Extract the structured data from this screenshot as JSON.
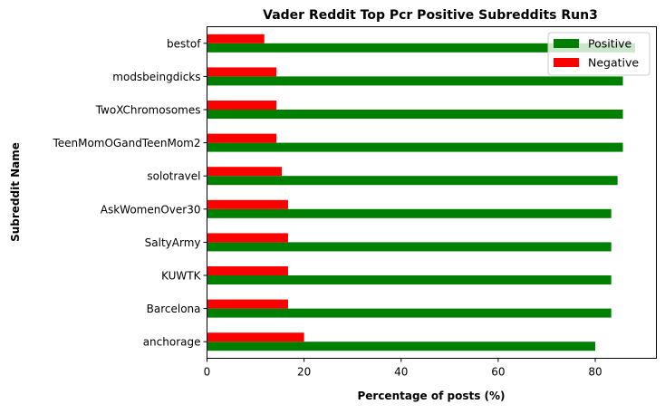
{
  "chart_data": {
    "type": "bar",
    "orientation": "horizontal",
    "title": "Vader Reddit Top Pcr Positive Subreddits Run3",
    "xlabel": "Percentage of posts (%)",
    "ylabel": "Subreddit Name",
    "categories": [
      "anchorage",
      "Barcelona",
      "KUWTK",
      "SaltyArmy",
      "AskWomenOver30",
      "solotravel",
      "TeenMomOGandTeenMom2",
      "TwoXChromosomes",
      "modsbeingdicks",
      "bestof"
    ],
    "series": [
      {
        "name": "Positive",
        "color": "#008000",
        "values": [
          80.0,
          83.3,
          83.3,
          83.3,
          83.3,
          84.6,
          85.7,
          85.7,
          85.7,
          88.2
        ]
      },
      {
        "name": "Negative",
        "color": "#ff0000",
        "values": [
          20.0,
          16.7,
          16.7,
          16.7,
          16.7,
          15.4,
          14.3,
          14.3,
          14.3,
          11.8
        ]
      }
    ],
    "xlim": [
      0,
      92.6
    ],
    "xticks": [
      0,
      20,
      40,
      60,
      80
    ],
    "grid": false,
    "legend_position": "top-right"
  }
}
